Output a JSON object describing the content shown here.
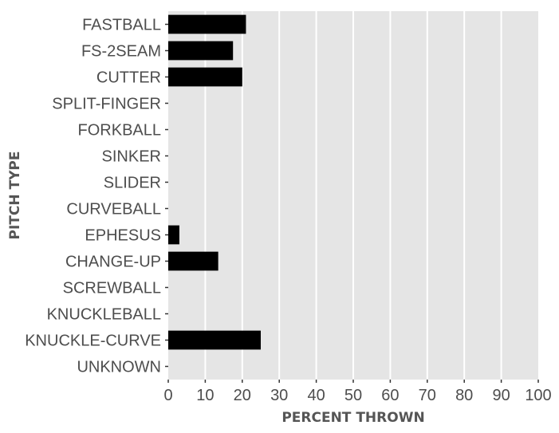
{
  "chart_data": {
    "type": "bar",
    "orientation": "horizontal",
    "xlabel": "PERCENT THROWN",
    "ylabel": "PITCH TYPE",
    "xlim": [
      0,
      100
    ],
    "xticks": [
      0,
      10,
      20,
      30,
      40,
      50,
      60,
      70,
      80,
      90,
      100
    ],
    "grid": true,
    "categories": [
      "FASTBALL",
      "FS-2SEAM",
      "CUTTER",
      "SPLIT-FINGER",
      "FORKBALL",
      "SINKER",
      "SLIDER",
      "CURVEBALL",
      "EPHESUS",
      "CHANGE-UP",
      "SCREWBALL",
      "KNUCKLEBALL",
      "KNUCKLE-CURVE",
      "UNKNOWN"
    ],
    "values": [
      21,
      17.5,
      20,
      0,
      0,
      0,
      0,
      0,
      3,
      13.5,
      0,
      0,
      25,
      0
    ],
    "colors": {
      "panel": "#e5e5e5",
      "grid": "#ffffff",
      "bar": "#000000",
      "text": "#4d4d4d"
    }
  }
}
